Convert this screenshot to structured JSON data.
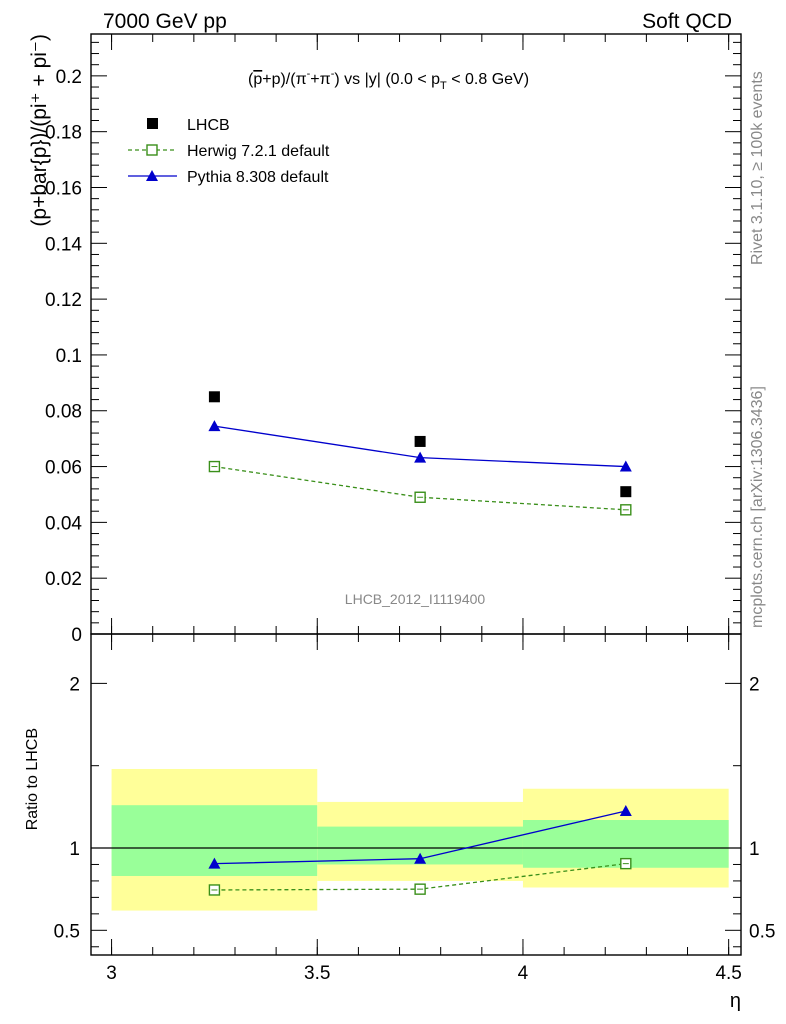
{
  "header": {
    "left": "7000 GeV pp",
    "right": "Soft QCD"
  },
  "side": {
    "rivet": "Rivet 3.1.10, ≥ 100k events",
    "mcplots": "mcplots.cern.ch [arXiv:1306.3436]"
  },
  "watermark": "LHCB_2012_I1119400",
  "title_parts": {
    "pre": "(",
    "pbar": "p",
    "mid": "+p)/(π",
    "sup1": "-",
    "mid2": "+π",
    "sup2": "-",
    "mid3": ") vs |y| (0.0 < p",
    "sub": "T",
    "post": " < 0.8 GeV)"
  },
  "colors": {
    "data": "#000000",
    "herwig": "#3a8f1a",
    "pythia": "#0000cc",
    "band_inner": "#99ff99",
    "band_outer": "#ffff99"
  },
  "chart_data": [
    {
      "type": "scatter",
      "panel": "main",
      "ylabel": "(p+bar{p})/(pi⁺ + pi⁻)",
      "ylim": [
        0,
        0.215
      ],
      "xlim": [
        2.95,
        4.53
      ],
      "yticks": [
        0,
        0.02,
        0.04,
        0.06,
        0.08,
        0.1,
        0.12,
        0.14,
        0.16,
        0.18,
        0.2
      ],
      "ytick_labels": [
        "0",
        "0.02",
        "0.04",
        "0.06",
        "0.08",
        "0.1",
        "0.12",
        "0.14",
        "0.16",
        "0.18",
        "0.2"
      ],
      "legend_position": "top-left",
      "x": [
        3.25,
        3.75,
        4.25
      ],
      "series": [
        {
          "name": "LHCB",
          "style": "marker-square-filled",
          "values": [
            0.085,
            0.069,
            0.051
          ]
        },
        {
          "name": "Herwig 7.2.1 default",
          "style": "dashed-open-square",
          "values": [
            0.06,
            0.049,
            0.0445
          ]
        },
        {
          "name": "Pythia 8.308 default",
          "style": "solid-triangle",
          "values": [
            0.0745,
            0.0632,
            0.06
          ]
        }
      ]
    },
    {
      "type": "line",
      "panel": "ratio",
      "ylabel": "Ratio to LHCB",
      "xlabel": "η",
      "ylim": [
        0.35,
        2.3
      ],
      "xlim": [
        2.95,
        4.53
      ],
      "yticks": [
        0.5,
        1,
        2
      ],
      "ytick_labels": [
        "0.5",
        "1",
        "2"
      ],
      "xticks": [
        3,
        3.5,
        4,
        4.5
      ],
      "xtick_labels": [
        "3",
        "3.5",
        "4",
        "4.5"
      ],
      "bins": [
        [
          3.0,
          3.5
        ],
        [
          3.5,
          4.0
        ],
        [
          4.0,
          4.5
        ]
      ],
      "band_inner": [
        [
          0.83,
          1.26
        ],
        [
          0.9,
          1.13
        ],
        [
          0.88,
          1.17
        ]
      ],
      "band_outer": [
        [
          0.62,
          1.48
        ],
        [
          0.8,
          1.28
        ],
        [
          0.76,
          1.36
        ]
      ],
      "x": [
        3.25,
        3.75,
        4.25
      ],
      "series": [
        {
          "name": "Herwig 7.2.1 default",
          "values": [
            0.745,
            0.75,
            0.905
          ]
        },
        {
          "name": "Pythia 8.308 default",
          "values": [
            0.905,
            0.935,
            1.225
          ]
        }
      ]
    }
  ]
}
